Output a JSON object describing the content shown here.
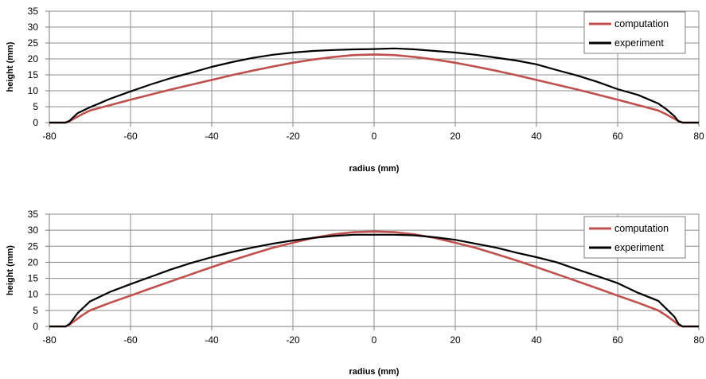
{
  "chart_data": [
    {
      "type": "line",
      "xlabel": "radius (mm)",
      "ylabel": "height (mm)",
      "xlim": [
        -80,
        80
      ],
      "ylim": [
        0,
        35
      ],
      "x_ticks": [
        -80,
        -60,
        -40,
        -20,
        0,
        20,
        40,
        60,
        80
      ],
      "y_ticks": [
        0,
        5,
        10,
        15,
        20,
        25,
        30,
        35
      ],
      "grid": true,
      "legend_position": "top-right",
      "series": [
        {
          "name": "computation",
          "color": "#c0504d",
          "x": [
            -80,
            -76,
            -75,
            -72,
            -70,
            -65,
            -60,
            -55,
            -50,
            -45,
            -40,
            -35,
            -30,
            -25,
            -20,
            -15,
            -10,
            -5,
            0,
            5,
            10,
            15,
            20,
            25,
            30,
            35,
            40,
            45,
            50,
            55,
            60,
            65,
            70,
            72,
            75,
            76,
            80
          ],
          "y": [
            0,
            0,
            0.5,
            2.6,
            3.8,
            5.5,
            7.2,
            8.8,
            10.4,
            11.9,
            13.4,
            14.9,
            16.3,
            17.6,
            18.8,
            19.8,
            20.6,
            21.2,
            21.4,
            21.2,
            20.6,
            19.8,
            18.8,
            17.6,
            16.3,
            14.9,
            13.4,
            11.9,
            10.4,
            8.8,
            7.2,
            5.5,
            3.8,
            2.6,
            0.5,
            0,
            0
          ]
        },
        {
          "name": "experiment",
          "color": "#000000",
          "x": [
            -80,
            -76,
            -75,
            -73,
            -70,
            -65,
            -60,
            -55,
            -50,
            -45,
            -40,
            -35,
            -30,
            -25,
            -20,
            -15,
            -10,
            -5,
            0,
            5,
            10,
            15,
            20,
            25,
            30,
            35,
            40,
            45,
            50,
            55,
            60,
            65,
            70,
            72,
            74,
            75,
            76,
            80
          ],
          "y": [
            0,
            0,
            0.6,
            3.0,
            4.8,
            7.5,
            9.8,
            12.0,
            14.0,
            15.7,
            17.5,
            19.0,
            20.3,
            21.3,
            22.0,
            22.5,
            22.8,
            23.0,
            23.1,
            23.3,
            23.0,
            22.5,
            22.0,
            21.3,
            20.4,
            19.5,
            18.3,
            16.5,
            14.8,
            12.8,
            10.5,
            8.7,
            6.0,
            4.2,
            2.0,
            0.4,
            0,
            0
          ]
        }
      ]
    },
    {
      "type": "line",
      "xlabel": "radius (mm)",
      "ylabel": "height (mm)",
      "xlim": [
        -80,
        80
      ],
      "ylim": [
        0,
        35
      ],
      "x_ticks": [
        -80,
        -60,
        -40,
        -20,
        0,
        20,
        40,
        60,
        80
      ],
      "y_ticks": [
        0,
        5,
        10,
        15,
        20,
        25,
        30,
        35
      ],
      "grid": true,
      "legend_position": "top-right",
      "series": [
        {
          "name": "computation",
          "color": "#c0504d",
          "x": [
            -80,
            -76,
            -75,
            -72,
            -70,
            -65,
            -60,
            -55,
            -50,
            -45,
            -40,
            -35,
            -30,
            -25,
            -20,
            -15,
            -10,
            -5,
            0,
            5,
            10,
            15,
            20,
            25,
            30,
            35,
            40,
            45,
            50,
            55,
            60,
            65,
            70,
            72,
            75,
            76,
            80
          ],
          "y": [
            0,
            0,
            0.6,
            3.4,
            5.0,
            7.4,
            9.6,
            11.9,
            14.1,
            16.3,
            18.5,
            20.6,
            22.6,
            24.5,
            26.1,
            27.6,
            28.7,
            29.4,
            29.6,
            29.4,
            28.7,
            27.6,
            26.1,
            24.5,
            22.6,
            20.6,
            18.5,
            16.3,
            14.1,
            11.9,
            9.6,
            7.4,
            5.0,
            3.4,
            0.6,
            0,
            0
          ]
        },
        {
          "name": "experiment",
          "color": "#000000",
          "x": [
            -80,
            -76,
            -75,
            -73,
            -70,
            -65,
            -60,
            -55,
            -50,
            -45,
            -40,
            -35,
            -30,
            -25,
            -20,
            -15,
            -10,
            -5,
            0,
            5,
            10,
            15,
            20,
            25,
            30,
            35,
            40,
            45,
            50,
            55,
            60,
            65,
            70,
            72,
            74,
            75,
            76,
            80
          ],
          "y": [
            0,
            0,
            0.8,
            4.2,
            7.8,
            10.8,
            13.2,
            15.5,
            17.8,
            19.8,
            21.6,
            23.2,
            24.6,
            25.8,
            26.8,
            27.6,
            28.2,
            28.6,
            28.6,
            28.6,
            28.4,
            27.8,
            27.0,
            25.8,
            24.6,
            23.0,
            21.6,
            20.0,
            17.8,
            15.7,
            13.5,
            10.5,
            8.0,
            5.5,
            3.0,
            0.8,
            0,
            0
          ]
        }
      ]
    }
  ]
}
